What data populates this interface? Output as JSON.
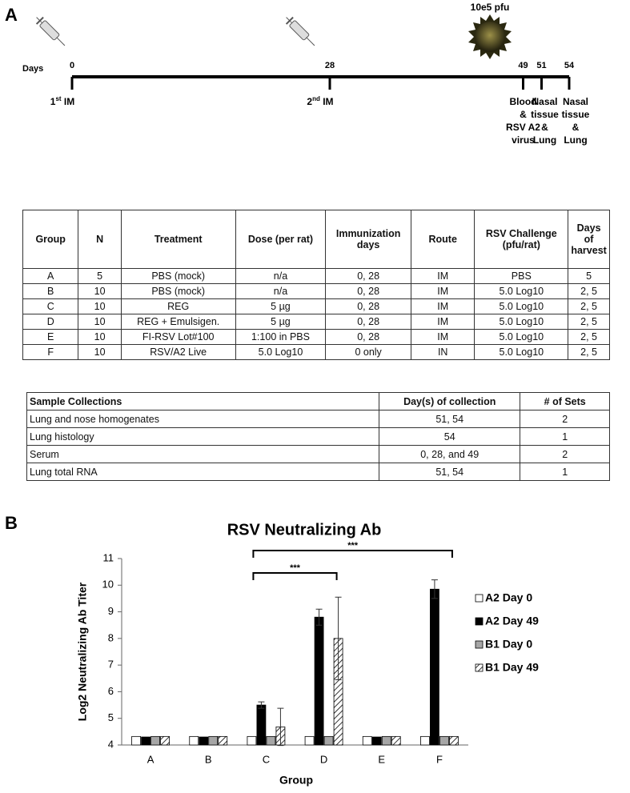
{
  "panel_a": {
    "label": "A",
    "timeline": {
      "days_label": "Days",
      "top_note": "10e5 pfu",
      "days": [
        0,
        28,
        49,
        51,
        54
      ],
      "events": [
        [
          "1",
          "st",
          " IM"
        ],
        [
          "2",
          "nd",
          " IM"
        ],
        [
          "Blood",
          "&",
          "RSV A2",
          "virus"
        ],
        [
          "Nasal",
          "tissue",
          "&",
          "Lung"
        ],
        [
          "Nasal",
          "tissue",
          "&",
          "Lung"
        ]
      ]
    },
    "table": {
      "header": [
        "Group",
        "N",
        "Treatment",
        "Dose (per rat)",
        "Immunization days",
        "Route",
        "RSV Challenge (pfu/rat)",
        "Days of harvest"
      ],
      "rows": [
        [
          "A",
          "5",
          "PBS (mock)",
          "n/a",
          "0, 28",
          "IM",
          "PBS",
          "5"
        ],
        [
          "B",
          "10",
          "PBS (mock)",
          "n/a",
          "0, 28",
          "IM",
          "5.0 Log10",
          "2, 5"
        ],
        [
          "C",
          "10",
          "REG",
          "5 µg",
          "0, 28",
          "IM",
          "5.0 Log10",
          "2, 5"
        ],
        [
          "D",
          "10",
          "REG + Emulsigen.",
          "5 µg",
          "0, 28",
          "IM",
          "5.0 Log10",
          "2, 5"
        ],
        [
          "E",
          "10",
          "FI-RSV Lot#100",
          "1:100 in PBS",
          "0, 28",
          "IM",
          "5.0 Log10",
          "2, 5"
        ],
        [
          "F",
          "10",
          "RSV/A2 Live",
          "5.0 Log10",
          "0 only",
          "IN",
          "5.0 Log10",
          "2, 5"
        ]
      ]
    },
    "collections": {
      "header": [
        "Sample Collections",
        "Day(s) of collection",
        "# of Sets"
      ],
      "rows": [
        [
          "Lung and nose homogenates",
          "51, 54",
          "2"
        ],
        [
          "Lung histology",
          "54",
          "1"
        ],
        [
          "Serum",
          "0, 28, and 49",
          "2"
        ],
        [
          "Lung total RNA",
          "51, 54",
          "1"
        ]
      ]
    }
  },
  "panel_b": {
    "label": "B"
  },
  "chart_data": {
    "type": "bar",
    "title": "RSV Neutralizing Ab",
    "x_label": "Group",
    "y_label": "Log2 Neutralizing Ab Titer",
    "categories": [
      "A",
      "B",
      "C",
      "D",
      "E",
      "F"
    ],
    "series": [
      {
        "name": "A2 Day 0",
        "color": "#ffffff",
        "values": [
          4.32,
          4.32,
          4.32,
          4.32,
          4.32,
          4.32
        ],
        "errors": [
          null,
          null,
          null,
          null,
          null,
          null
        ]
      },
      {
        "name": "A2 Day 49",
        "color": "#000000",
        "values": [
          4.3,
          4.3,
          5.5,
          8.8,
          4.3,
          9.85
        ],
        "errors": [
          null,
          null,
          0.12,
          0.3,
          null,
          0.35
        ]
      },
      {
        "name": "B1 Day 0",
        "color": "#a6a6a6",
        "values": [
          4.32,
          4.32,
          4.32,
          4.32,
          4.32,
          4.32
        ],
        "errors": [
          null,
          null,
          null,
          null,
          null,
          null
        ]
      },
      {
        "name": "B1 Day 49",
        "color": "#ffffff",
        "hatch": true,
        "values": [
          4.32,
          4.32,
          4.68,
          8.0,
          4.32,
          4.32
        ],
        "errors": [
          null,
          null,
          0.7,
          1.55,
          null,
          null
        ]
      }
    ],
    "annotations": [
      {
        "text": "***",
        "from": "C",
        "to": "D"
      },
      {
        "text": "***",
        "from": "C",
        "to": "F"
      }
    ],
    "ylim": [
      4,
      11
    ],
    "yticks": [
      4,
      5,
      6,
      7,
      8,
      9,
      10,
      11
    ],
    "legend": "right"
  }
}
